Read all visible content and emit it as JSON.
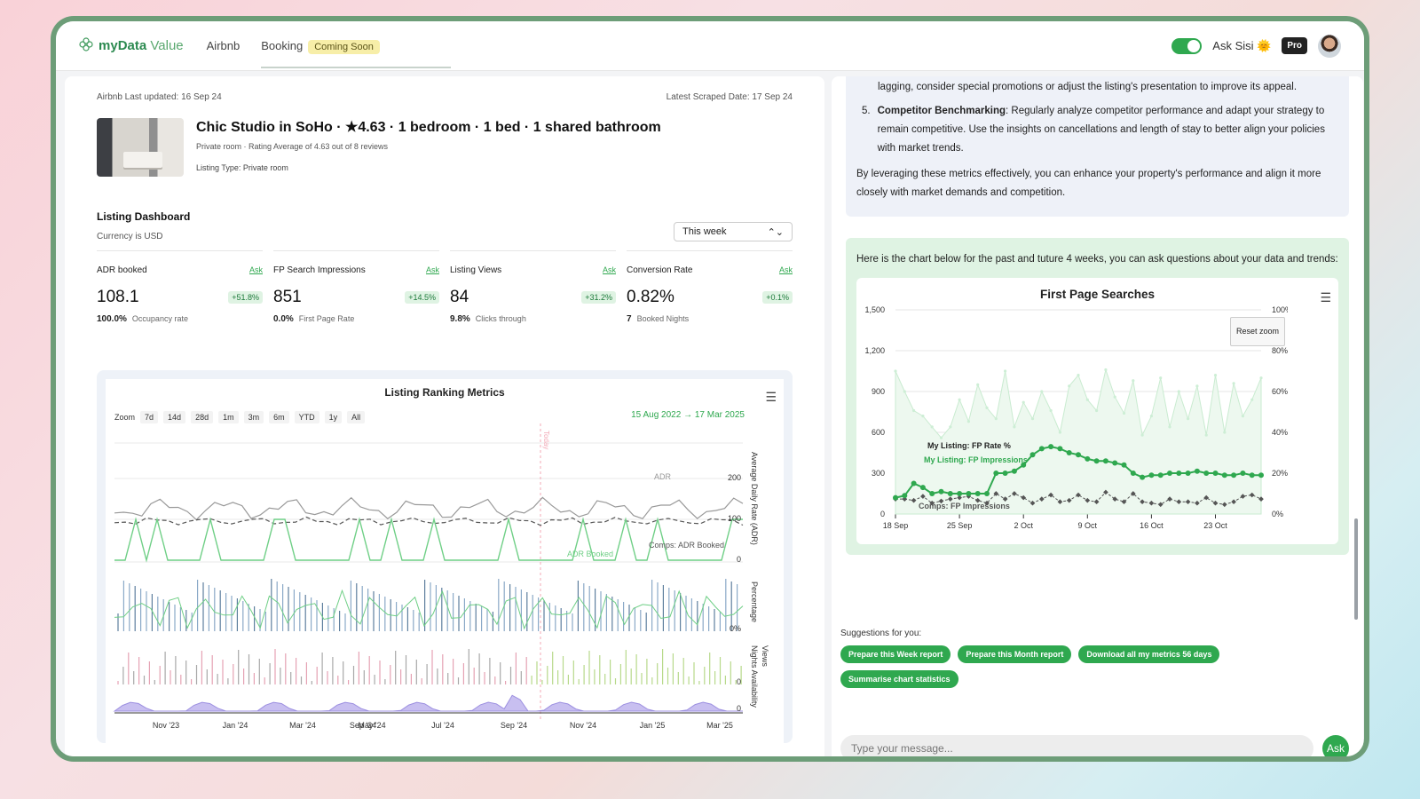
{
  "nav": {
    "brand_my": "my",
    "brand_data": "Data",
    "brand_value": "Value",
    "items": [
      "Airbnb",
      "Booking"
    ],
    "coming_soon": "Coming Soon",
    "ask_sisi": "Ask Sisi",
    "pro": "Pro"
  },
  "listing": {
    "last_updated": "Airbnb Last updated: 16 Sep 24",
    "scraped": "Latest Scraped Date: 17 Sep 24",
    "title": "Chic Studio in SoHo · ★4.63 · 1 bedroom · 1 bed · 1 shared bathroom",
    "subtitle": "Private room · Rating Average of 4.63 out of 8 reviews",
    "type": "Listing Type: Private room"
  },
  "dashboard": {
    "title": "Listing Dashboard",
    "currency": "Currency is USD",
    "period": "This week"
  },
  "kpis": [
    {
      "label": "ADR booked",
      "ask": "Ask",
      "value": "108.1",
      "change": "+51.8%",
      "sub_value": "100.0%",
      "sub_label": "Occupancy rate"
    },
    {
      "label": "FP Search Impressions",
      "ask": "Ask",
      "value": "851",
      "change": "+14.5%",
      "sub_value": "0.0%",
      "sub_label": "First Page Rate"
    },
    {
      "label": "Listing Views",
      "ask": "Ask",
      "value": "84",
      "change": "+31.2%",
      "sub_value": "9.8%",
      "sub_label": "Clicks through"
    },
    {
      "label": "Conversion Rate",
      "ask": "Ask",
      "value": "0.82%",
      "change": "+0.1%",
      "sub_value": "7",
      "sub_label": "Booked Nights"
    }
  ],
  "ranking_chart": {
    "title": "Listing Ranking Metrics",
    "zoom_label": "Zoom",
    "zoom_buttons": [
      "7d",
      "14d",
      "28d",
      "1m",
      "3m",
      "6m",
      "YTD",
      "1y",
      "All"
    ],
    "date_from": "15 Aug 2022",
    "date_arrow": "→",
    "date_to": "17 Mar 2025",
    "today_label": "Today",
    "x_ticks": [
      "Nov '23",
      "Jan '24",
      "Mar '24",
      "May '24",
      "Sep '24",
      "Jul '24",
      "Sep '24",
      "Nov '24",
      "Jan '25",
      "Mar '25"
    ],
    "y_axes": [
      "Average Daily Rate (ADR)",
      "Percentage",
      "Nights Availability",
      "Views"
    ],
    "adr_ticks": [
      "200",
      "100",
      "0"
    ],
    "pct_tick": "0%",
    "nights_tick": "0",
    "views_tick": "0",
    "series_labels": {
      "adr": "ADR",
      "adr_booked": "ADR Booked",
      "comps_adr": "Comps: ADR Booked"
    }
  },
  "chat": {
    "item4_tail": "lagging, consider special promotions or adjust the listing's presentation to improve its appeal.",
    "item5_num": "5.",
    "item5_bold": "Competitor Benchmarking",
    "item5_text": ": Regularly analyze competitor performance and adapt your strategy to remain competitive. Use the insights on cancellations and length of stay to better align your policies with market trends.",
    "closing": "By leveraging these metrics effectively, you can enhance your property's performance and align it more closely with market demands and competition.",
    "chart_intro": "Here is the chart below for the past and tuture 4 weeks, you can ask questions about your data and trends:"
  },
  "chart_data": {
    "type": "line",
    "title": "First Page Searches",
    "reset_zoom": "Reset zoom",
    "x": [
      "18 Sep",
      "19 Sep",
      "20 Sep",
      "21 Sep",
      "22 Sep",
      "23 Sep",
      "24 Sep",
      "25 Sep",
      "26 Sep",
      "27 Sep",
      "28 Sep",
      "29 Sep",
      "30 Sep",
      "1 Oct",
      "2 Oct",
      "3 Oct",
      "4 Oct",
      "5 Oct",
      "6 Oct",
      "7 Oct",
      "8 Oct",
      "9 Oct",
      "10 Oct",
      "11 Oct",
      "12 Oct",
      "13 Oct",
      "14 Oct",
      "15 Oct",
      "16 Oct",
      "17 Oct",
      "18 Oct",
      "19 Oct",
      "20 Oct",
      "21 Oct",
      "22 Oct",
      "23 Oct",
      "24 Oct",
      "25 Oct",
      "26 Oct",
      "27 Oct",
      "28 Oct"
    ],
    "x_ticks": [
      "18 Sep",
      "25 Sep",
      "2 Oct",
      "9 Oct",
      "16 Oct",
      "23 Oct"
    ],
    "y_left_ticks": [
      "0",
      "300",
      "600",
      "900",
      "1,200",
      "1,500"
    ],
    "y_right_ticks": [
      "0%",
      "20%",
      "40%",
      "60%",
      "80%",
      "100%"
    ],
    "ylim_left": [
      0,
      1500
    ],
    "ylim_right": [
      0,
      100
    ],
    "grid": true,
    "series": [
      {
        "name": "My Listing: FP Impressions",
        "axis": "left",
        "color": "#c9ebd0",
        "values": [
          1050,
          900,
          760,
          720,
          640,
          560,
          640,
          840,
          680,
          950,
          780,
          700,
          1050,
          640,
          820,
          700,
          900,
          760,
          600,
          940,
          1020,
          840,
          760,
          1060,
          860,
          740,
          980,
          580,
          720,
          1000,
          640,
          900,
          700,
          940,
          580,
          1020,
          600,
          960,
          720,
          840,
          1000
        ]
      },
      {
        "name": "Comps: FP Impressions",
        "axis": "left",
        "color": "#555555",
        "values": [
          110,
          110,
          100,
          130,
          80,
          95,
          110,
          120,
          130,
          100,
          80,
          150,
          110,
          150,
          120,
          80,
          110,
          140,
          90,
          100,
          140,
          100,
          90,
          160,
          110,
          90,
          150,
          90,
          80,
          70,
          110,
          90,
          90,
          80,
          120,
          80,
          70,
          90,
          130,
          140,
          110
        ]
      },
      {
        "name": "My Listing: FP Rate %",
        "axis": "right",
        "color": "#2fa84f",
        "values": [
          8,
          9,
          15,
          13,
          10,
          11,
          10,
          10,
          10,
          10,
          10,
          20,
          20,
          21,
          24,
          29,
          32,
          33,
          32,
          30,
          29,
          27,
          26,
          26,
          25,
          24,
          20,
          18,
          19,
          19,
          20,
          20,
          20,
          21,
          20,
          20,
          19,
          19,
          20,
          19,
          19
        ]
      }
    ]
  },
  "suggestions": {
    "title": "Suggestions for you:",
    "chips": [
      "Prepare this Week report",
      "Prepare this Month report",
      "Download all my metrics 56 days",
      "Summarise chart statistics"
    ]
  },
  "input": {
    "placeholder": "Type your message...",
    "send": "Ask"
  },
  "colors": {
    "accent": "#2fa84f",
    "frame": "#6d9d78",
    "info_bg": "#eef1f8",
    "chart_bg": "#dff3e3"
  }
}
